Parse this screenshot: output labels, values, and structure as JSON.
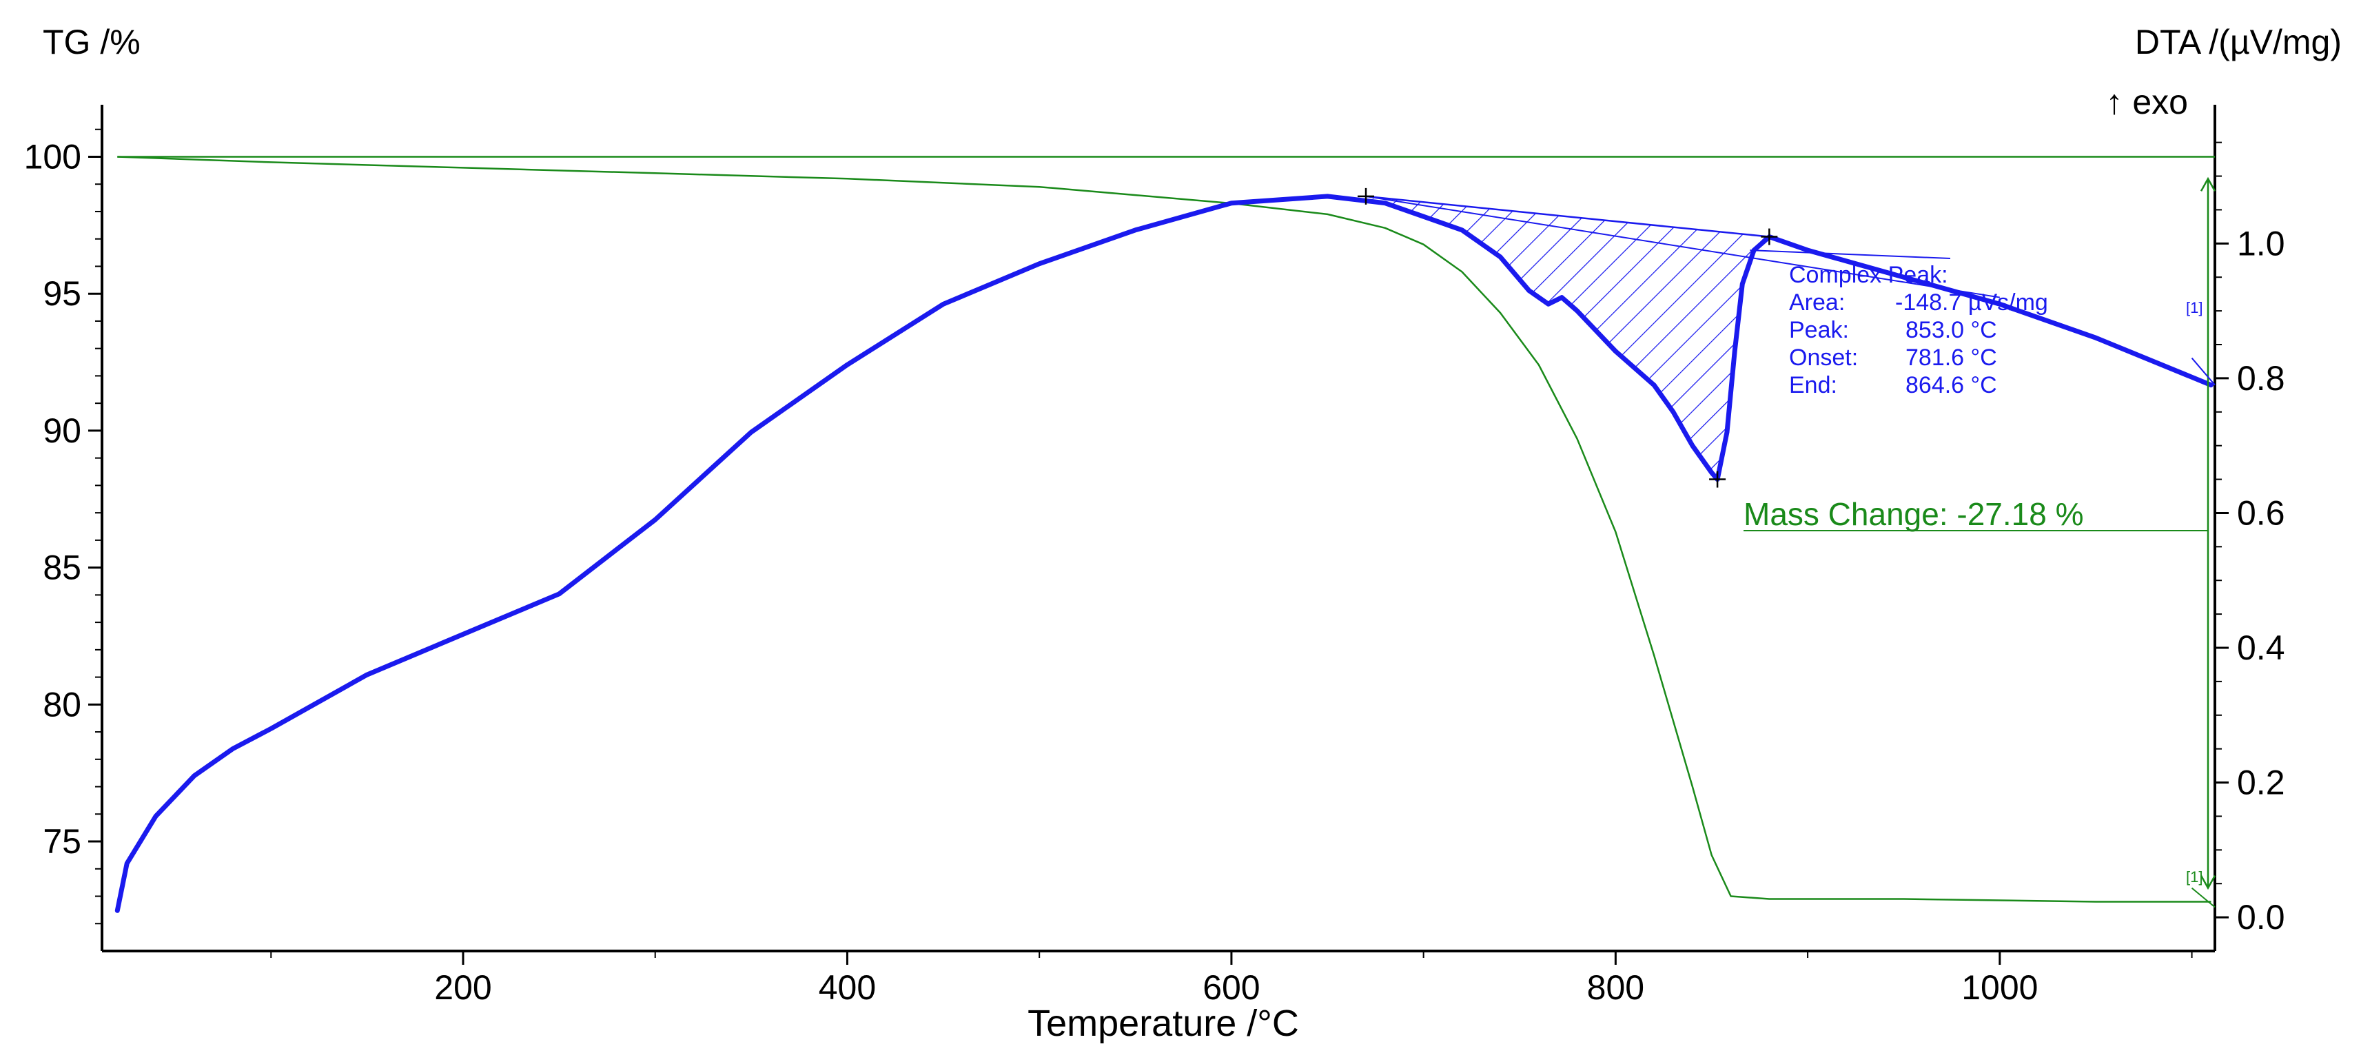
{
  "chart_data": {
    "type": "line",
    "xlabel": "Temperature /°C",
    "ylabel_left": "TG /%",
    "ylabel_right": "DTA /(µV/mg)",
    "exo_label": "↑ exo",
    "xlim": [
      12,
      1112
    ],
    "ylim_left": [
      71,
      102
    ],
    "ylim_right": [
      -0.05,
      1.21
    ],
    "x_ticks": [
      200,
      400,
      600,
      800,
      1000
    ],
    "y_ticks_left": [
      75,
      80,
      85,
      90,
      95,
      100
    ],
    "y_ticks_right": [
      0.0,
      0.2,
      0.4,
      0.6,
      0.8,
      1.0
    ],
    "y_tick_labels_right": [
      "0.0",
      "0.2",
      "0.4",
      "0.6",
      "0.8",
      "1.0"
    ],
    "grid": false,
    "series": [
      {
        "name": "TG",
        "axis": "left",
        "color": "#1a8a1a",
        "x": [
          20,
          100,
          200,
          300,
          400,
          500,
          550,
          600,
          650,
          680,
          700,
          720,
          740,
          760,
          780,
          800,
          820,
          840,
          850,
          860,
          880,
          950,
          1050,
          1110
        ],
        "y": [
          100.0,
          99.8,
          99.6,
          99.4,
          99.2,
          98.9,
          98.6,
          98.3,
          97.9,
          97.4,
          96.8,
          95.8,
          94.3,
          92.4,
          89.7,
          86.3,
          81.8,
          77.0,
          74.5,
          73.0,
          72.9,
          72.9,
          72.8,
          72.8
        ]
      },
      {
        "name": "DTA",
        "axis": "right",
        "color": "#1a1aee",
        "x": [
          20,
          25,
          40,
          60,
          80,
          100,
          150,
          200,
          250,
          300,
          350,
          400,
          450,
          500,
          550,
          600,
          650,
          680,
          700,
          720,
          740,
          755,
          765,
          772,
          780,
          800,
          820,
          830,
          840,
          850,
          853,
          858,
          862,
          866,
          872,
          880,
          900,
          950,
          1000,
          1050,
          1110
        ],
        "y": [
          0.01,
          0.08,
          0.15,
          0.21,
          0.25,
          0.28,
          0.36,
          0.42,
          0.48,
          0.59,
          0.72,
          0.82,
          0.91,
          0.97,
          1.02,
          1.06,
          1.07,
          1.06,
          1.04,
          1.02,
          0.98,
          0.93,
          0.91,
          0.92,
          0.9,
          0.84,
          0.79,
          0.75,
          0.7,
          0.66,
          0.65,
          0.72,
          0.84,
          0.94,
          0.99,
          1.01,
          0.99,
          0.95,
          0.91,
          0.86,
          0.79
        ]
      }
    ],
    "peak_analysis": {
      "title": "Complex Peak:",
      "rows": [
        {
          "label": "Area:",
          "value": "-148.7 µVs/mg"
        },
        {
          "label": "Peak:",
          "value": "853.0 °C"
        },
        {
          "label": "Onset:",
          "value": "781.6 °C"
        },
        {
          "label": "End:",
          "value": "864.6 °C"
        }
      ],
      "start_x": 670,
      "end_x": 880,
      "peak_x": 853,
      "baseline_y_start": 1.07,
      "baseline_y_end": 1.01,
      "tangent_from": {
        "x": 670,
        "y": 1.07
      },
      "tangent_to": {
        "x": 1000,
        "y": 0.92
      }
    },
    "mass_change": {
      "label": "Mass Change: -27.18 %",
      "from_y": 100.0,
      "to_y": 72.8,
      "x": 1110
    },
    "curve_markers": [
      "[1]",
      "[1]"
    ]
  }
}
